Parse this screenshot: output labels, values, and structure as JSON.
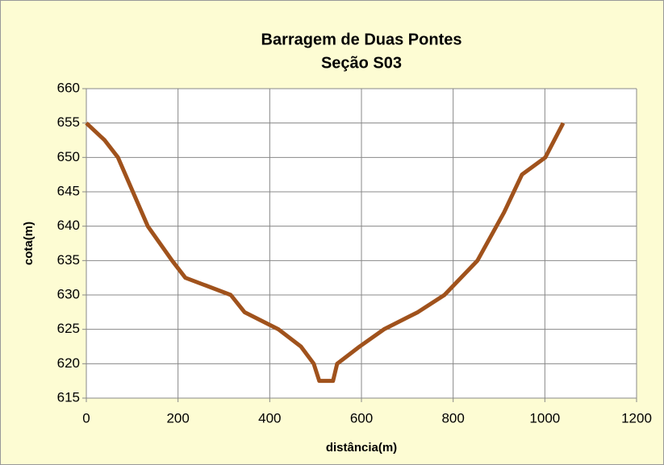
{
  "chart_data": {
    "type": "line",
    "title": "Barragem de Duas Pontes",
    "subtitle": "Seção S03",
    "x_label": "distância(m)",
    "y_label": "cota(m)",
    "series": [
      {
        "name": "S03",
        "color": "#a0521c",
        "x": [
          0,
          40,
          69,
          134,
          187,
          216,
          315,
          345,
          419,
          468,
          496,
          508,
          538,
          547,
          596,
          649,
          723,
          781,
          853,
          911,
          950,
          1001,
          1040
        ],
        "values": [
          655,
          652.5,
          650,
          640,
          635,
          632.5,
          630,
          627.5,
          625,
          622.5,
          620,
          617.5,
          617.5,
          620,
          622.5,
          625,
          627.5,
          630,
          635,
          642,
          647.5,
          650,
          655
        ]
      }
    ],
    "xlim": [
      0,
      1200
    ],
    "xticks": [
      0,
      200,
      400,
      600,
      800,
      1000,
      1200
    ],
    "ylim": [
      615,
      660
    ],
    "yticks": [
      615,
      620,
      625,
      630,
      635,
      640,
      645,
      650,
      655,
      660
    ],
    "grid": true
  }
}
